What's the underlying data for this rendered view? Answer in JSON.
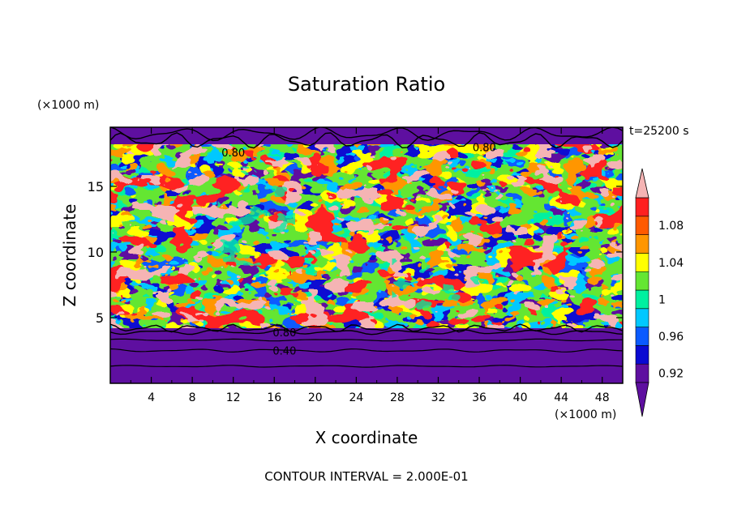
{
  "chart_data": {
    "type": "heatmap",
    "title": "Saturation Ratio",
    "xlabel": "X coordinate",
    "ylabel": "Z coordinate",
    "x_unit": "(×1000 m)",
    "y_unit": "(×1000 m)",
    "time_label": "t=25200 s",
    "footer": "CONTOUR INTERVAL = 2.000E-01",
    "xlim": [
      0,
      50
    ],
    "ylim": [
      0,
      19.5
    ],
    "x_ticks": [
      4,
      8,
      12,
      16,
      20,
      24,
      28,
      32,
      36,
      40,
      44,
      48
    ],
    "y_ticks": [
      5,
      10,
      15
    ],
    "contour_labels": [
      {
        "text": "0.80",
        "x": 12,
        "y": 17.6
      },
      {
        "text": "0.80",
        "x": 36.5,
        "y": 18.0
      },
      {
        "text": "0.80",
        "x": 17,
        "y": 3.9
      },
      {
        "text": "0.40",
        "x": 17,
        "y": 2.5
      }
    ],
    "colorbar": {
      "levels": [
        0.9,
        0.92,
        0.94,
        0.96,
        0.98,
        1.0,
        1.02,
        1.04,
        1.06,
        1.08,
        1.1
      ],
      "tick_labels": [
        "0.92",
        "0.96",
        "1",
        "1.04",
        "1.08"
      ],
      "tick_values": [
        0.92,
        0.96,
        1.0,
        1.04,
        1.08
      ],
      "colors": [
        "#5e0fa0",
        "#0a0ad2",
        "#0a5aff",
        "#00c8ff",
        "#00f0a0",
        "#64e632",
        "#ffff00",
        "#ff9600",
        "#ff5a00",
        "#ff2020",
        "#ff1e1e",
        "#f5b4b4"
      ],
      "under_color": "#5e0fa0",
      "over_color": "#f5b4b4"
    }
  }
}
